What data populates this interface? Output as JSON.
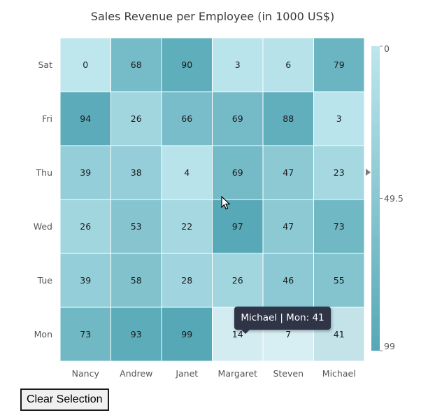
{
  "chart_data": {
    "type": "heatmap",
    "title": "Sales Revenue per Employee (in 1000 US$)",
    "x_categories": [
      "Nancy",
      "Andrew",
      "Janet",
      "Margaret",
      "Steven",
      "Michael"
    ],
    "y_categories": [
      "Mon",
      "Tue",
      "Wed",
      "Thu",
      "Fri",
      "Sat"
    ],
    "values": {
      "Sat": [
        0,
        68,
        90,
        3,
        6,
        79
      ],
      "Fri": [
        94,
        26,
        66,
        69,
        88,
        3
      ],
      "Thu": [
        39,
        38,
        4,
        69,
        47,
        23
      ],
      "Wed": [
        26,
        53,
        22,
        97,
        47,
        73
      ],
      "Tue": [
        39,
        58,
        28,
        26,
        46,
        55
      ],
      "Mon": [
        73,
        93,
        99,
        14,
        7,
        41
      ]
    },
    "legend": {
      "min": 0,
      "mid": 49.5,
      "max": 99,
      "labels": [
        "0",
        "49.5",
        "99"
      ],
      "color_low": "#bde6ed",
      "color_high": "#56a8b7",
      "placement": "right"
    },
    "selected_cells": [
      {
        "employee": "Margaret",
        "day": "Mon"
      },
      {
        "employee": "Steven",
        "day": "Mon"
      },
      {
        "employee": "Michael",
        "day": "Mon"
      }
    ]
  },
  "tooltip": {
    "text": "Michael | Mon: 41"
  },
  "clear_button": {
    "label": "Clear Selection"
  }
}
